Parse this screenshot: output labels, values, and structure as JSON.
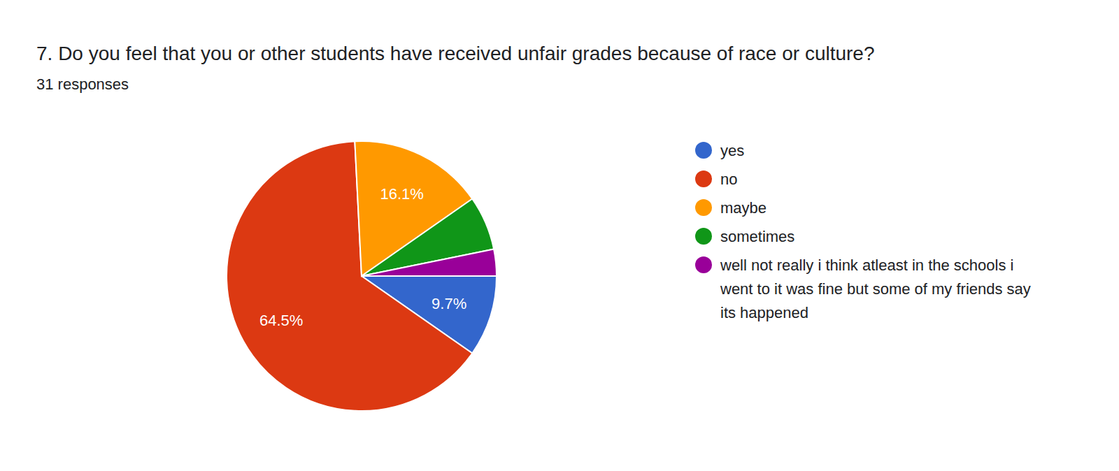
{
  "chart_data": {
    "type": "pie",
    "title": "7. Do you feel that you or other students have received unfair grades because of race or culture?",
    "subtitle": "31 responses",
    "categories": [
      "yes",
      "no",
      "maybe",
      "sometimes",
      "well not really i think atleast in the schools i went to it was fine but some of my friends say its happened"
    ],
    "values": [
      9.7,
      64.5,
      16.1,
      6.5,
      3.2
    ],
    "value_labels": [
      "9.7%",
      "64.5%",
      "16.1%",
      null,
      null
    ],
    "colors": [
      "#3366cc",
      "#dc3912",
      "#ff9900",
      "#109618",
      "#990099"
    ],
    "data_labels": true,
    "legend": "right"
  }
}
